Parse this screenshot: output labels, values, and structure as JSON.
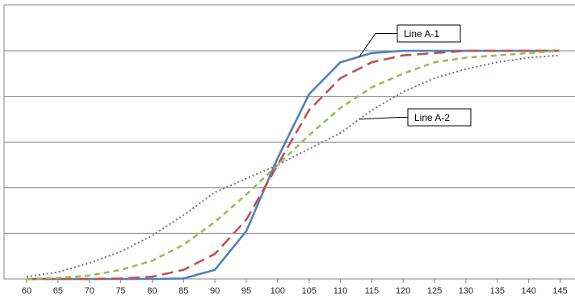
{
  "chart_data": {
    "type": "line",
    "title": "",
    "xlabel": "",
    "ylabel": "",
    "x": [
      60,
      65,
      70,
      75,
      80,
      85,
      90,
      95,
      100,
      105,
      110,
      115,
      120,
      125,
      130,
      135,
      140,
      145
    ],
    "ylim": [
      0,
      1
    ],
    "xlim": [
      60,
      145
    ],
    "grid": "horizontal",
    "y_tick_labels": "none",
    "legend": "none",
    "series": [
      {
        "name": "",
        "style": "solid",
        "color": "#4F81BD",
        "values": [
          0,
          0,
          0,
          0,
          0,
          0.002,
          0.04,
          0.21,
          0.53,
          0.81,
          0.95,
          0.99,
          1.0,
          1.0,
          1.0,
          1.0,
          1.0,
          1.0
        ]
      },
      {
        "name": "",
        "style": "long-dash",
        "color": "#C0504D",
        "values": [
          0,
          0,
          0,
          0.002,
          0.01,
          0.04,
          0.11,
          0.26,
          0.5,
          0.74,
          0.88,
          0.95,
          0.98,
          0.99,
          1.0,
          1.0,
          1.0,
          1.0
        ]
      },
      {
        "name": "",
        "style": "short-dash",
        "color": "#9BBB59",
        "values": [
          0,
          0.005,
          0.015,
          0.04,
          0.08,
          0.15,
          0.25,
          0.37,
          0.5,
          0.63,
          0.75,
          0.84,
          0.9,
          0.95,
          0.97,
          0.98,
          0.99,
          1.0
        ]
      },
      {
        "name": "",
        "style": "dotted",
        "color": "#8064A2",
        "values": [
          0.01,
          0.03,
          0.07,
          0.12,
          0.19,
          0.28,
          0.38,
          0.44,
          0.5,
          0.57,
          0.64,
          0.74,
          0.82,
          0.88,
          0.92,
          0.95,
          0.97,
          0.98
        ]
      }
    ],
    "annotations": [
      {
        "text": "Line A-1",
        "target_series": 0,
        "target_x": 113
      },
      {
        "text": "Line A-2",
        "target_series": 3,
        "target_x": 113
      }
    ]
  }
}
